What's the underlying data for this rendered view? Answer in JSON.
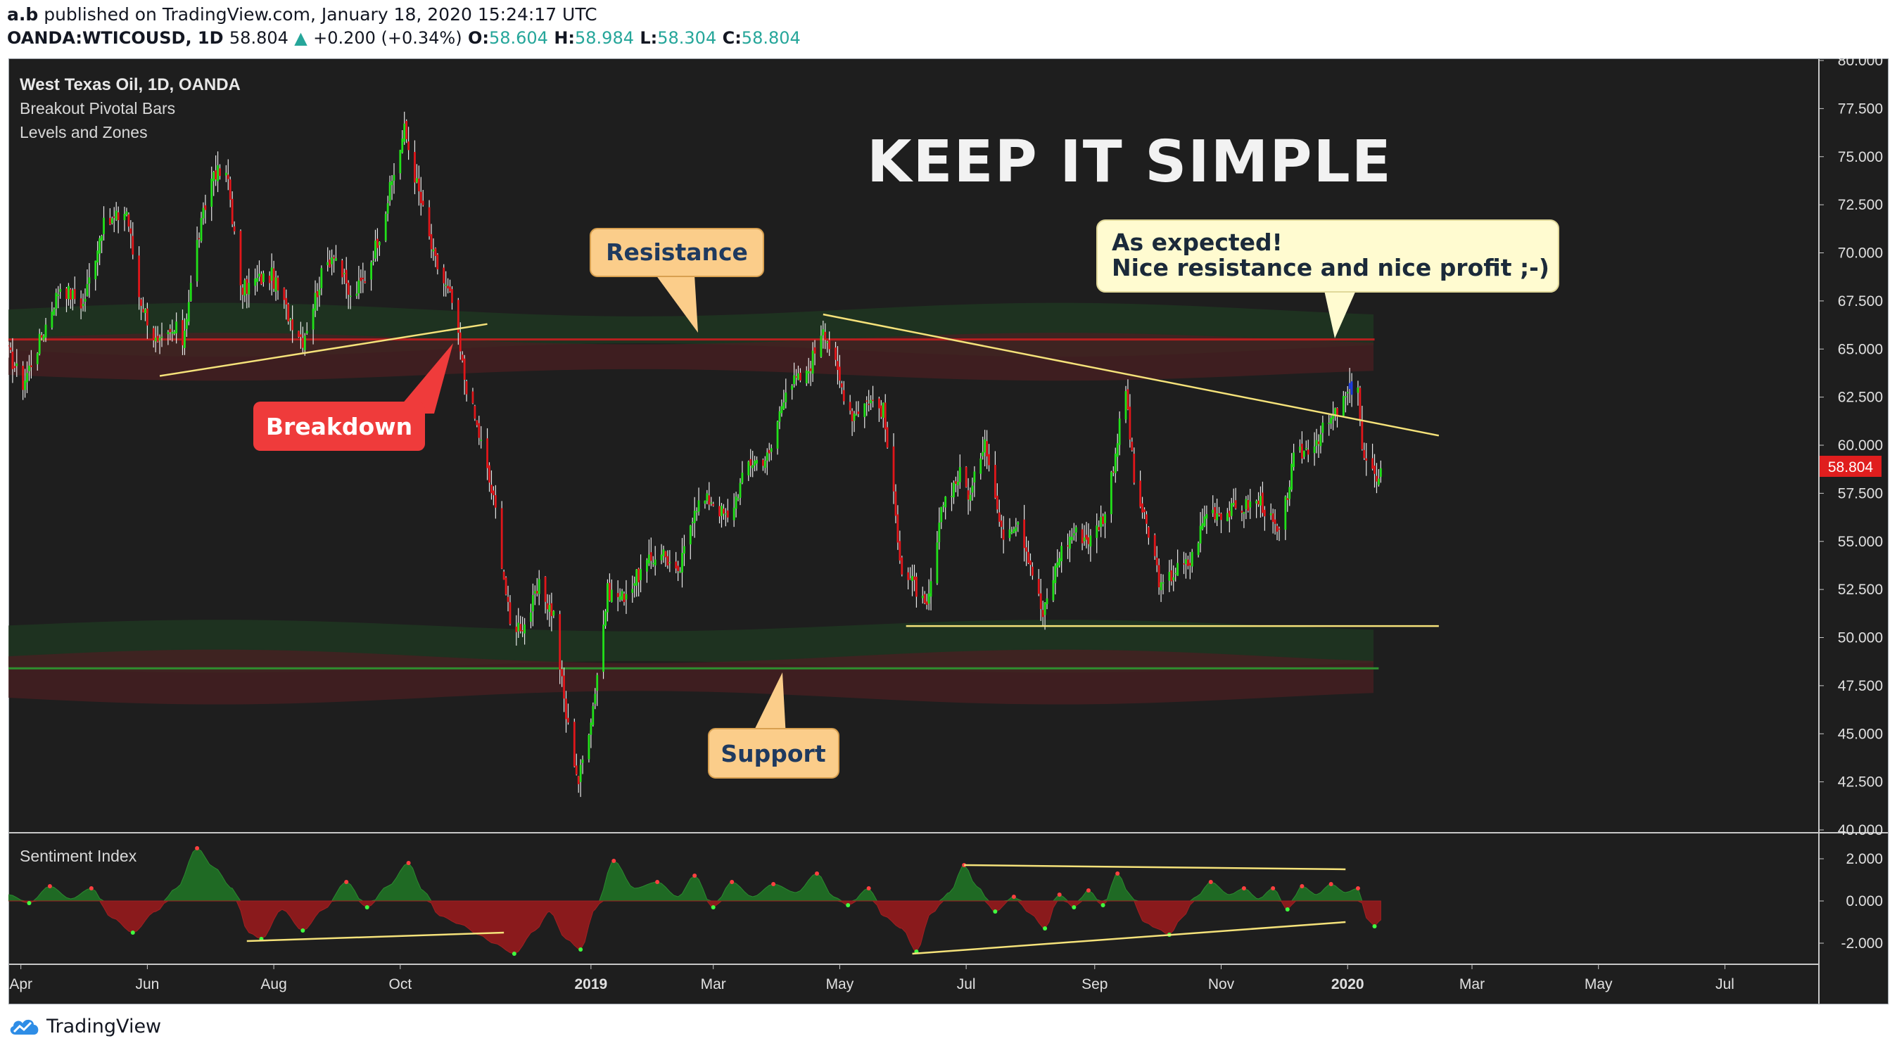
{
  "header": {
    "author": "a.b",
    "published_text": "published on TradingView.com, January 18, 2020 15:24:17 UTC",
    "symbol": "OANDA:WTICOUSD, 1D",
    "last": "58.804",
    "change": "+0.200 (+0.34%)",
    "open_label": "O:",
    "open": "58.604",
    "high_label": "H:",
    "high": "58.984",
    "low_label": "L:",
    "low": "58.304",
    "close_label": "C:",
    "close": "58.804"
  },
  "legend": {
    "title": "West Texas Oil, 1D, OANDA",
    "indicator1": "Breakout Pivotal Bars",
    "indicator2": "Levels and Zones"
  },
  "annotations": {
    "headline": "KEEP IT SIMPLE",
    "resistance": "Resistance",
    "support": "Support",
    "breakdown": "Breakdown",
    "callout_line1": "As expected!",
    "callout_line2": "Nice resistance and nice profit ;-)"
  },
  "sentiment_title": "Sentiment Index",
  "footer_brand": "TradingView",
  "colors": {
    "background": "#1e1e1e",
    "bull": "#22e01a",
    "bear": "#e0161a",
    "trendline": "#f5e27a",
    "resistance_line": "#b81f1f",
    "support_line": "#2f8f2f",
    "label_orange": "#fbcd8a",
    "label_red": "#ef3b3b",
    "callout_bg": "#fffbd0",
    "price_tag": "#e01e1e"
  },
  "chart_data": {
    "type": "candlestick",
    "price_axis": {
      "ylim": [
        40,
        80
      ],
      "ticks": [
        "80.000",
        "77.500",
        "75.000",
        "72.500",
        "70.000",
        "67.500",
        "65.000",
        "62.500",
        "60.000",
        "57.500",
        "55.000",
        "52.500",
        "50.000",
        "47.500",
        "45.000",
        "42.500",
        "40.000"
      ]
    },
    "sentiment_axis": {
      "ylim": [
        -3,
        3
      ],
      "ticks": [
        "2.000",
        "0.000",
        "-2.000"
      ]
    },
    "x_ticks": [
      {
        "label": "Apr",
        "date": "2018-04-01",
        "bold": false
      },
      {
        "label": "Jun",
        "date": "2018-06-01",
        "bold": false
      },
      {
        "label": "Aug",
        "date": "2018-08-01",
        "bold": false
      },
      {
        "label": "Oct",
        "date": "2018-10-01",
        "bold": false
      },
      {
        "label": "2019",
        "date": "2019-01-01",
        "bold": true
      },
      {
        "label": "Mar",
        "date": "2019-03-01",
        "bold": false
      },
      {
        "label": "May",
        "date": "2019-05-01",
        "bold": false
      },
      {
        "label": "Jul",
        "date": "2019-07-01",
        "bold": false
      },
      {
        "label": "Sep",
        "date": "2019-09-01",
        "bold": false
      },
      {
        "label": "Nov",
        "date": "2019-11-01",
        "bold": false
      },
      {
        "label": "2020",
        "date": "2020-01-01",
        "bold": true
      },
      {
        "label": "Mar",
        "date": "2020-03-01",
        "bold": false
      },
      {
        "label": "May",
        "date": "2020-05-01",
        "bold": false
      },
      {
        "label": "Jul",
        "date": "2020-07-01",
        "bold": false
      }
    ],
    "x_range": [
      "2018-03-26",
      "2020-08-15"
    ],
    "last_price": "58.804",
    "close_path": [
      [
        "2018-03-26",
        64.8
      ],
      [
        "2018-04-02",
        63.2
      ],
      [
        "2018-04-10",
        65.4
      ],
      [
        "2018-04-20",
        68.3
      ],
      [
        "2018-05-01",
        67.3
      ],
      [
        "2018-05-10",
        71.3
      ],
      [
        "2018-05-22",
        72.2
      ],
      [
        "2018-05-28",
        67.8
      ],
      [
        "2018-06-06",
        65.1
      ],
      [
        "2018-06-15",
        66.0
      ],
      [
        "2018-06-18",
        65.4
      ],
      [
        "2018-06-25",
        70.5
      ],
      [
        "2018-07-03",
        74.3
      ],
      [
        "2018-07-10",
        73.8
      ],
      [
        "2018-07-16",
        68.0
      ],
      [
        "2018-07-24",
        68.6
      ],
      [
        "2018-07-31",
        68.8
      ],
      [
        "2018-08-08",
        66.8
      ],
      [
        "2018-08-15",
        65.5
      ],
      [
        "2018-08-24",
        68.8
      ],
      [
        "2018-08-30",
        70.1
      ],
      [
        "2018-09-07",
        67.6
      ],
      [
        "2018-09-14",
        68.7
      ],
      [
        "2018-09-21",
        71.0
      ],
      [
        "2018-10-03",
        76.4
      ],
      [
        "2018-10-10",
        73.1
      ],
      [
        "2018-10-17",
        69.8
      ],
      [
        "2018-10-26",
        67.4
      ],
      [
        "2018-11-01",
        63.5
      ],
      [
        "2018-11-09",
        60.1
      ],
      [
        "2018-11-16",
        56.6
      ],
      [
        "2018-11-23",
        50.6
      ],
      [
        "2018-11-30",
        50.7
      ],
      [
        "2018-12-07",
        52.6
      ],
      [
        "2018-12-14",
        51.2
      ],
      [
        "2018-12-20",
        45.9
      ],
      [
        "2018-12-26",
        42.5
      ],
      [
        "2019-01-02",
        46.5
      ],
      [
        "2019-01-09",
        52.4
      ],
      [
        "2019-01-16",
        52.1
      ],
      [
        "2019-01-25",
        53.4
      ],
      [
        "2019-02-04",
        54.6
      ],
      [
        "2019-02-12",
        53.1
      ],
      [
        "2019-02-20",
        56.9
      ],
      [
        "2019-02-28",
        57.2
      ],
      [
        "2019-03-08",
        56.1
      ],
      [
        "2019-03-18",
        59.1
      ],
      [
        "2019-03-28",
        59.4
      ],
      [
        "2019-04-05",
        63.1
      ],
      [
        "2019-04-15",
        63.6
      ],
      [
        "2019-04-23",
        66.3
      ],
      [
        "2019-05-01",
        63.3
      ],
      [
        "2019-05-07",
        61.6
      ],
      [
        "2019-05-15",
        62.4
      ],
      [
        "2019-05-22",
        61.8
      ],
      [
        "2019-05-31",
        53.5
      ],
      [
        "2019-06-06",
        52.7
      ],
      [
        "2019-06-12",
        51.3
      ],
      [
        "2019-06-20",
        57.1
      ],
      [
        "2019-06-28",
        58.5
      ],
      [
        "2019-07-03",
        57.3
      ],
      [
        "2019-07-10",
        60.5
      ],
      [
        "2019-07-18",
        55.4
      ],
      [
        "2019-07-26",
        56.2
      ],
      [
        "2019-08-01",
        53.9
      ],
      [
        "2019-08-07",
        51.1
      ],
      [
        "2019-08-15",
        54.4
      ],
      [
        "2019-08-22",
        55.5
      ],
      [
        "2019-08-30",
        55.1
      ],
      [
        "2019-09-06",
        56.5
      ],
      [
        "2019-09-16",
        62.9
      ],
      [
        "2019-09-20",
        58.1
      ],
      [
        "2019-09-30",
        54.1
      ],
      [
        "2019-10-03",
        52.5
      ],
      [
        "2019-10-10",
        53.5
      ],
      [
        "2019-10-17",
        53.9
      ],
      [
        "2019-10-25",
        56.6
      ],
      [
        "2019-11-04",
        56.5
      ],
      [
        "2019-11-12",
        56.8
      ],
      [
        "2019-11-20",
        57.1
      ],
      [
        "2019-11-29",
        55.2
      ],
      [
        "2019-12-06",
        59.2
      ],
      [
        "2019-12-16",
        60.2
      ],
      [
        "2019-12-27",
        61.7
      ],
      [
        "2020-01-03",
        63.0
      ],
      [
        "2020-01-06",
        63.2
      ],
      [
        "2020-01-08",
        59.6
      ],
      [
        "2020-01-10",
        59.0
      ],
      [
        "2020-01-14",
        58.2
      ],
      [
        "2020-01-17",
        58.8
      ]
    ],
    "pivot_bars": [
      [
        "2020-01-02",
        "#1e3fe0"
      ],
      [
        "2020-01-03",
        "#1e3fe0"
      ]
    ],
    "resistance_level": 65.5,
    "support_level": 48.4,
    "resistance_zone": [
      63.4,
      67.6
    ],
    "support_zone": [
      46.5,
      50.8
    ],
    "trendlines": [
      {
        "from": [
          "2018-06-07",
          63.6
        ],
        "to": [
          "2018-11-12",
          66.3
        ]
      },
      {
        "from": [
          "2019-04-23",
          66.8
        ],
        "to": [
          "2020-02-14",
          60.5
        ]
      },
      {
        "from": [
          "2019-06-02",
          50.6
        ],
        "to": [
          "2020-02-14",
          50.6
        ]
      }
    ],
    "sentiment_path": [
      [
        "2018-03-26",
        0.3
      ],
      [
        "2018-04-05",
        -0.1
      ],
      [
        "2018-04-15",
        0.7
      ],
      [
        "2018-04-25",
        0.1
      ],
      [
        "2018-05-05",
        0.6
      ],
      [
        "2018-05-15",
        -0.8
      ],
      [
        "2018-05-25",
        -1.5
      ],
      [
        "2018-06-05",
        -0.5
      ],
      [
        "2018-06-15",
        0.6
      ],
      [
        "2018-06-25",
        2.5
      ],
      [
        "2018-07-03",
        1.6
      ],
      [
        "2018-07-12",
        0.6
      ],
      [
        "2018-07-20",
        -1.5
      ],
      [
        "2018-07-26",
        -1.8
      ],
      [
        "2018-08-05",
        -0.4
      ],
      [
        "2018-08-15",
        -1.4
      ],
      [
        "2018-08-25",
        -0.4
      ],
      [
        "2018-09-05",
        0.9
      ],
      [
        "2018-09-15",
        -0.3
      ],
      [
        "2018-09-25",
        0.7
      ],
      [
        "2018-10-05",
        1.8
      ],
      [
        "2018-10-12",
        0.5
      ],
      [
        "2018-10-20",
        -0.7
      ],
      [
        "2018-10-30",
        -1.1
      ],
      [
        "2018-11-08",
        -1.6
      ],
      [
        "2018-11-15",
        -2.0
      ],
      [
        "2018-11-25",
        -2.5
      ],
      [
        "2018-12-05",
        -1.4
      ],
      [
        "2018-12-12",
        -0.5
      ],
      [
        "2018-12-20",
        -1.8
      ],
      [
        "2018-12-27",
        -2.3
      ],
      [
        "2019-01-03",
        -0.4
      ],
      [
        "2019-01-12",
        1.9
      ],
      [
        "2019-01-22",
        0.6
      ],
      [
        "2019-02-02",
        0.9
      ],
      [
        "2019-02-12",
        0.2
      ],
      [
        "2019-02-20",
        1.2
      ],
      [
        "2019-03-01",
        -0.3
      ],
      [
        "2019-03-10",
        0.9
      ],
      [
        "2019-03-20",
        0.2
      ],
      [
        "2019-03-30",
        0.8
      ],
      [
        "2019-04-10",
        0.4
      ],
      [
        "2019-04-20",
        1.3
      ],
      [
        "2019-04-28",
        0.2
      ],
      [
        "2019-05-05",
        -0.2
      ],
      [
        "2019-05-15",
        0.6
      ],
      [
        "2019-05-22",
        -0.7
      ],
      [
        "2019-05-31",
        -1.3
      ],
      [
        "2019-06-07",
        -2.4
      ],
      [
        "2019-06-14",
        -0.6
      ],
      [
        "2019-06-23",
        0.4
      ],
      [
        "2019-06-30",
        1.7
      ],
      [
        "2019-07-06",
        0.7
      ],
      [
        "2019-07-15",
        -0.5
      ],
      [
        "2019-07-24",
        0.2
      ],
      [
        "2019-08-01",
        -0.6
      ],
      [
        "2019-08-08",
        -1.3
      ],
      [
        "2019-08-15",
        0.3
      ],
      [
        "2019-08-22",
        -0.3
      ],
      [
        "2019-08-29",
        0.5
      ],
      [
        "2019-09-05",
        -0.2
      ],
      [
        "2019-09-12",
        1.3
      ],
      [
        "2019-09-18",
        0.3
      ],
      [
        "2019-09-25",
        -1.0
      ],
      [
        "2019-10-01",
        -1.3
      ],
      [
        "2019-10-07",
        -1.6
      ],
      [
        "2019-10-13",
        -0.8
      ],
      [
        "2019-10-20",
        0.2
      ],
      [
        "2019-10-27",
        0.9
      ],
      [
        "2019-11-05",
        0.3
      ],
      [
        "2019-11-12",
        0.6
      ],
      [
        "2019-11-19",
        0.1
      ],
      [
        "2019-11-26",
        0.6
      ],
      [
        "2019-12-03",
        -0.4
      ],
      [
        "2019-12-10",
        0.7
      ],
      [
        "2019-12-17",
        0.3
      ],
      [
        "2019-12-24",
        0.8
      ],
      [
        "2019-12-31",
        0.4
      ],
      [
        "2020-01-06",
        0.6
      ],
      [
        "2020-01-10",
        -0.8
      ],
      [
        "2020-01-14",
        -1.2
      ],
      [
        "2020-01-17",
        -0.9
      ]
    ],
    "sentiment_trendlines": [
      {
        "from": [
          "2018-07-19",
          -1.9
        ],
        "to": [
          "2018-11-20",
          -1.5
        ]
      },
      {
        "from": [
          "2019-06-05",
          -2.5
        ],
        "to": [
          "2019-12-31",
          -1.0
        ]
      },
      {
        "from": [
          "2019-06-30",
          1.7
        ],
        "to": [
          "2019-12-31",
          1.5
        ]
      }
    ]
  }
}
